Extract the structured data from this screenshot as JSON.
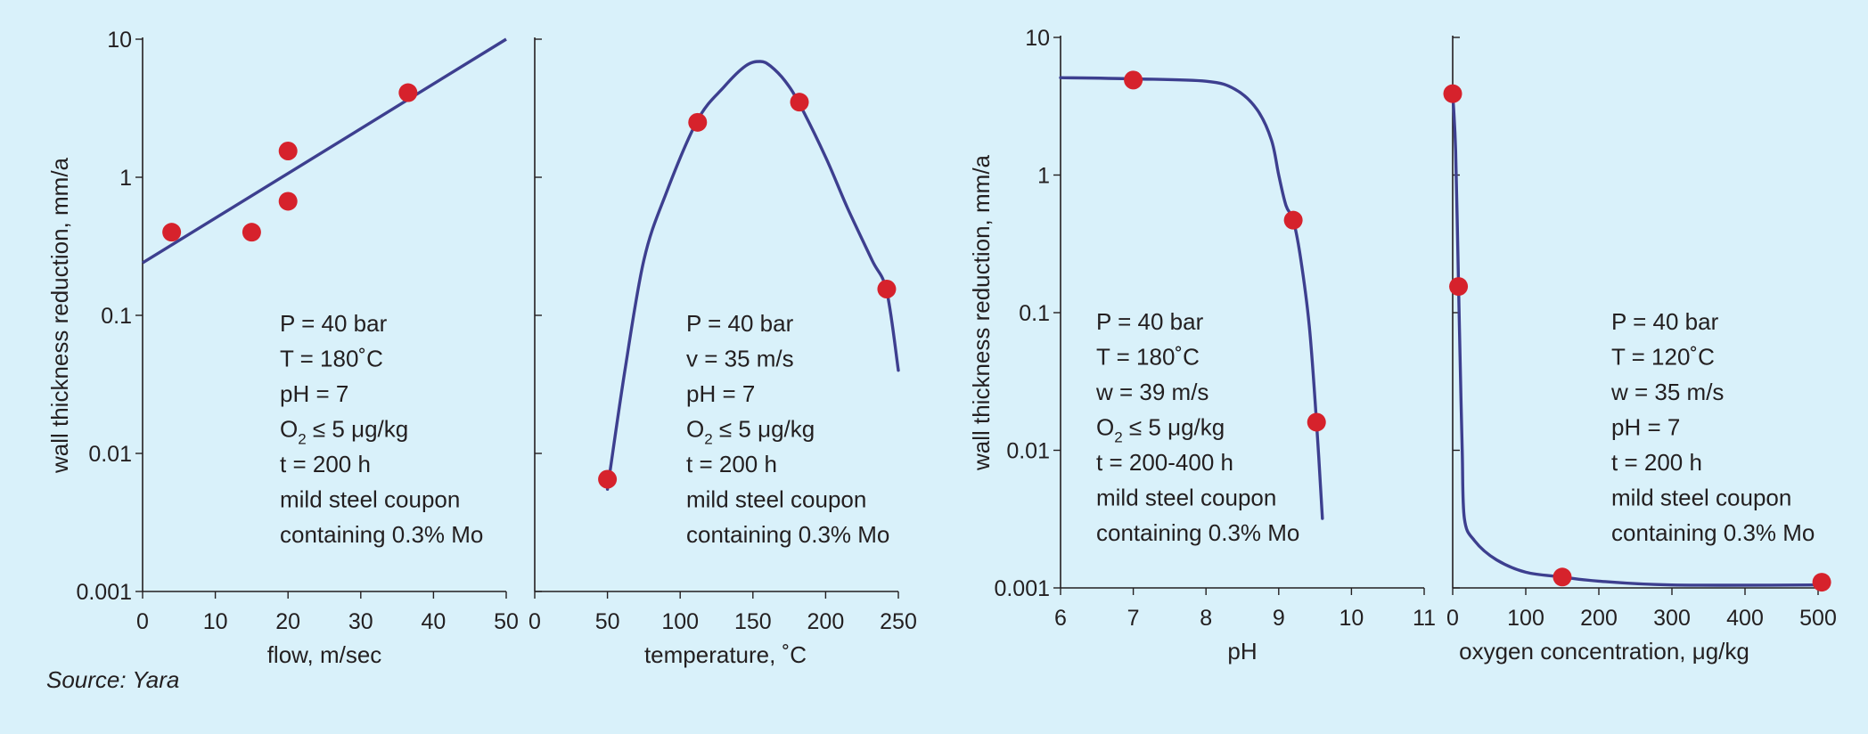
{
  "source": "Source: Yara",
  "chart_data": [
    {
      "type": "line",
      "xlabel": "flow, m/sec",
      "ylabel": "wall thickness reduction, mm/a",
      "xlim": [
        0,
        50
      ],
      "ylim": [
        0.001,
        10
      ],
      "yscale": "log",
      "xticks": [
        "0",
        "10",
        "20",
        "30",
        "40",
        "50"
      ],
      "yticks": [
        "10",
        "1",
        "0.1",
        "0.01",
        "0.001"
      ],
      "points": [
        [
          4,
          0.4
        ],
        [
          15,
          0.4
        ],
        [
          20,
          1.55
        ],
        [
          20,
          0.67
        ],
        [
          36.5,
          4.1
        ]
      ],
      "fit_line": [
        [
          0,
          0.24
        ],
        [
          50,
          10
        ]
      ],
      "annotation": [
        "P = 40 bar",
        "T = 180˚C",
        "pH = 7",
        "O2 ≤ 5 μg/kg",
        "t = 200 h",
        "mild steel coupon",
        "containing 0.3% Mo"
      ]
    },
    {
      "type": "line",
      "xlabel": "temperature, ˚C",
      "xlim": [
        0,
        250
      ],
      "ylim": [
        0.001,
        10
      ],
      "yscale": "log",
      "xticks": [
        "0",
        "50",
        "100",
        "150",
        "200",
        "250"
      ],
      "points": [
        [
          50,
          0.0065
        ],
        [
          112,
          2.5
        ],
        [
          182,
          3.5
        ],
        [
          242,
          0.155
        ]
      ],
      "curve": [
        [
          50,
          0.0055
        ],
        [
          62,
          0.04
        ],
        [
          75,
          0.25
        ],
        [
          90,
          0.75
        ],
        [
          112,
          2.6
        ],
        [
          130,
          4.5
        ],
        [
          145,
          6.4
        ],
        [
          155,
          6.9
        ],
        [
          162,
          6.4
        ],
        [
          172,
          5.0
        ],
        [
          182,
          3.4
        ],
        [
          200,
          1.4
        ],
        [
          215,
          0.6
        ],
        [
          232,
          0.25
        ],
        [
          242,
          0.15
        ],
        [
          250,
          0.04
        ]
      ],
      "annotation": [
        "P = 40 bar",
        "v = 35 m/s",
        "pH = 7",
        "O2 ≤ 5 μg/kg",
        "t = 200 h",
        "mild steel coupon",
        "containing 0.3% Mo"
      ]
    },
    {
      "type": "line",
      "xlabel": "pH",
      "ylabel": "wall thickness reduction, mm/a",
      "xlim": [
        6,
        11
      ],
      "ylim": [
        0.001,
        10
      ],
      "yscale": "log",
      "xticks": [
        "6",
        "7",
        "8",
        "9",
        "10",
        "11"
      ],
      "yticks": [
        "10",
        "1",
        "0.1",
        "0.01",
        "0.001"
      ],
      "points": [
        [
          7,
          4.9
        ],
        [
          9.2,
          0.47
        ],
        [
          9.52,
          0.016
        ]
      ],
      "curve": [
        [
          6,
          5.1
        ],
        [
          7,
          5.0
        ],
        [
          8.0,
          4.8
        ],
        [
          8.4,
          4.2
        ],
        [
          8.7,
          3.0
        ],
        [
          8.9,
          1.8
        ],
        [
          9.0,
          1.0
        ],
        [
          9.1,
          0.6
        ],
        [
          9.2,
          0.47
        ],
        [
          9.3,
          0.25
        ],
        [
          9.42,
          0.08
        ],
        [
          9.52,
          0.016
        ],
        [
          9.6,
          0.0032
        ]
      ],
      "annotation": [
        "P = 40 bar",
        "T = 180˚C",
        "w = 39 m/s",
        "O2 ≤ 5 μg/kg",
        "t = 200-400 h",
        "mild steel coupon",
        "containing 0.3% Mo"
      ]
    },
    {
      "type": "line",
      "xlabel": "oxygen concentration, μg/kg",
      "xlim": [
        0,
        500
      ],
      "ylim": [
        0.001,
        10
      ],
      "yscale": "log",
      "xticks": [
        "0",
        "100",
        "200",
        "300",
        "400",
        "500"
      ],
      "points": [
        [
          0,
          3.9
        ],
        [
          8,
          0.155
        ],
        [
          150,
          0.0012
        ],
        [
          505,
          0.0011
        ]
      ],
      "curve": [
        [
          0,
          3.9
        ],
        [
          4,
          1.5
        ],
        [
          8,
          0.155
        ],
        [
          10,
          0.05
        ],
        [
          13,
          0.01
        ],
        [
          16,
          0.0032
        ],
        [
          30,
          0.0022
        ],
        [
          60,
          0.0016
        ],
        [
          100,
          0.0013
        ],
        [
          150,
          0.0012
        ],
        [
          200,
          0.00112
        ],
        [
          300,
          0.00105
        ],
        [
          505,
          0.00105
        ]
      ],
      "annotation": [
        "P = 40 bar",
        "T = 120˚C",
        "w = 35 m/s",
        "pH = 7",
        "t = 200 h",
        "mild steel coupon",
        "containing 0.3% Mo"
      ]
    }
  ]
}
